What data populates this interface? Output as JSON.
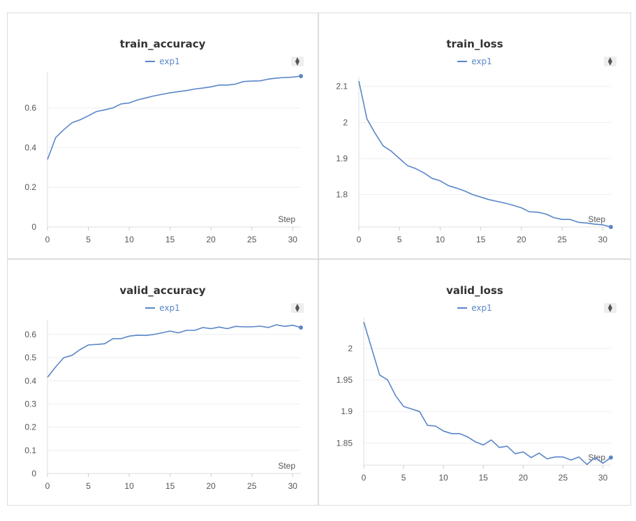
{
  "chart_data": [
    {
      "type": "line",
      "title": "train_accuracy",
      "xlabel": "Step",
      "ylabel": "",
      "xlim": [
        0,
        31
      ],
      "ylim": [
        0,
        0.76
      ],
      "xticks": [
        "0",
        "5",
        "10",
        "15",
        "20",
        "25",
        "30"
      ],
      "yticks": [
        "0",
        "0.2",
        "0.4",
        "0.6"
      ],
      "legend_position": "top-center",
      "grid": true,
      "series": [
        {
          "name": "exp1",
          "color": "#5a86c9",
          "x": [
            0,
            1,
            2,
            3,
            4,
            5,
            6,
            7,
            8,
            9,
            10,
            11,
            12,
            13,
            14,
            15,
            16,
            17,
            18,
            19,
            20,
            21,
            22,
            23,
            24,
            25,
            26,
            27,
            28,
            29,
            30,
            31
          ],
          "y": [
            0.34,
            0.45,
            0.49,
            0.525,
            0.54,
            0.56,
            0.582,
            0.59,
            0.6,
            0.62,
            0.625,
            0.64,
            0.65,
            0.66,
            0.668,
            0.676,
            0.682,
            0.687,
            0.695,
            0.7,
            0.706,
            0.715,
            0.715,
            0.72,
            0.733,
            0.735,
            0.736,
            0.745,
            0.75,
            0.753,
            0.755,
            0.76
          ]
        }
      ]
    },
    {
      "type": "line",
      "title": "train_loss",
      "xlabel": "Step",
      "ylabel": "",
      "xlim": [
        0,
        31
      ],
      "ylim": [
        1.71,
        2.115
      ],
      "xticks": [
        "0",
        "5",
        "10",
        "15",
        "20",
        "25",
        "30"
      ],
      "yticks": [
        "1.8",
        "1.9",
        "2",
        "2.1"
      ],
      "legend_position": "top-center",
      "grid": true,
      "series": [
        {
          "name": "exp1",
          "color": "#5a86c9",
          "x": [
            0,
            1,
            2,
            3,
            4,
            5,
            6,
            7,
            8,
            9,
            10,
            11,
            12,
            13,
            14,
            15,
            16,
            17,
            18,
            19,
            20,
            21,
            22,
            23,
            24,
            25,
            26,
            27,
            28,
            29,
            30,
            31
          ],
          "y": [
            2.115,
            2.01,
            1.97,
            1.935,
            1.92,
            1.9,
            1.88,
            1.872,
            1.86,
            1.845,
            1.838,
            1.825,
            1.818,
            1.81,
            1.8,
            1.793,
            1.786,
            1.781,
            1.776,
            1.77,
            1.763,
            1.752,
            1.751,
            1.746,
            1.736,
            1.731,
            1.731,
            1.723,
            1.721,
            1.718,
            1.716,
            1.71
          ]
        }
      ]
    },
    {
      "type": "line",
      "title": "valid_accuracy",
      "xlabel": "Step",
      "ylabel": "",
      "xlim": [
        0,
        31
      ],
      "ylim": [
        0,
        0.645
      ],
      "xticks": [
        "0",
        "5",
        "10",
        "15",
        "20",
        "25",
        "30"
      ],
      "yticks": [
        "0",
        "0.1",
        "0.2",
        "0.3",
        "0.4",
        "0.5",
        "0.6"
      ],
      "legend_position": "top-center",
      "grid": true,
      "series": [
        {
          "name": "exp1",
          "color": "#5a86c9",
          "x": [
            0,
            1,
            2,
            3,
            4,
            5,
            6,
            7,
            8,
            9,
            10,
            11,
            12,
            13,
            14,
            15,
            16,
            17,
            18,
            19,
            20,
            21,
            22,
            23,
            24,
            25,
            26,
            27,
            28,
            29,
            30,
            31
          ],
          "y": [
            0.415,
            0.46,
            0.5,
            0.51,
            0.535,
            0.555,
            0.557,
            0.56,
            0.582,
            0.582,
            0.593,
            0.597,
            0.596,
            0.6,
            0.607,
            0.615,
            0.607,
            0.618,
            0.618,
            0.63,
            0.625,
            0.632,
            0.625,
            0.635,
            0.633,
            0.633,
            0.636,
            0.63,
            0.642,
            0.635,
            0.64,
            0.63
          ]
        }
      ]
    },
    {
      "type": "line",
      "title": "valid_loss",
      "xlabel": "Step",
      "ylabel": "",
      "xlim": [
        0,
        31
      ],
      "ylim": [
        1.815,
        2.042
      ],
      "xticks": [
        "0",
        "5",
        "10",
        "15",
        "20",
        "25",
        "30"
      ],
      "yticks": [
        "1.85",
        "1.9",
        "1.95",
        "2"
      ],
      "legend_position": "top-center",
      "grid": true,
      "series": [
        {
          "name": "exp1",
          "color": "#5a86c9",
          "x": [
            0,
            1,
            2,
            3,
            4,
            5,
            6,
            7,
            8,
            9,
            10,
            11,
            12,
            13,
            14,
            15,
            16,
            17,
            18,
            19,
            20,
            21,
            22,
            23,
            24,
            25,
            26,
            27,
            28,
            29,
            30,
            31
          ],
          "y": [
            2.042,
            2.0,
            1.958,
            1.95,
            1.925,
            1.908,
            1.904,
            1.9,
            1.878,
            1.877,
            1.869,
            1.865,
            1.865,
            1.86,
            1.852,
            1.847,
            1.855,
            1.843,
            1.845,
            1.833,
            1.836,
            1.827,
            1.834,
            1.825,
            1.828,
            1.828,
            1.823,
            1.828,
            1.816,
            1.827,
            1.818,
            1.827
          ]
        }
      ]
    }
  ]
}
